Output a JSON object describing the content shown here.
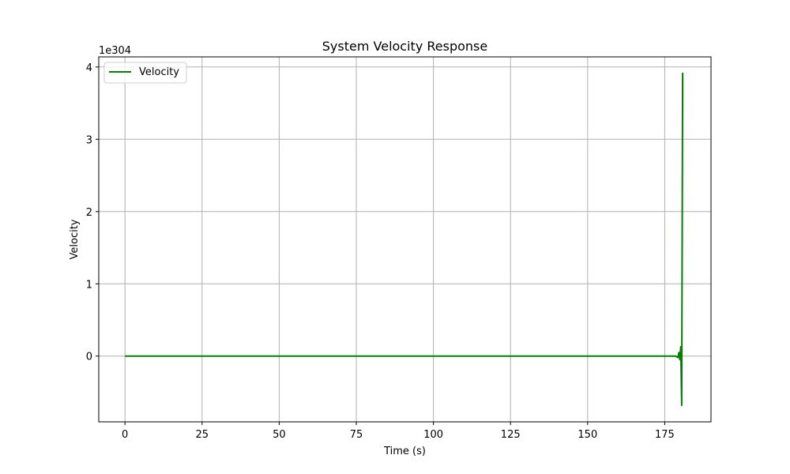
{
  "chart_data": {
    "type": "line",
    "title": "System Velocity Response",
    "xlabel": "Time (s)",
    "ylabel": "Velocity",
    "y_scale_label": "1e304",
    "xlim": [
      -8.5,
      190
    ],
    "ylim": [
      -0.91,
      4.14
    ],
    "x_ticks": [
      0,
      25,
      50,
      75,
      100,
      125,
      150,
      175
    ],
    "x_tick_labels": [
      "0",
      "25",
      "50",
      "75",
      "100",
      "125",
      "150",
      "175"
    ],
    "y_ticks": [
      0,
      1,
      2,
      3,
      4
    ],
    "y_tick_labels": [
      "0",
      "1",
      "2",
      "3",
      "4"
    ],
    "grid": true,
    "legend_position": "upper-left",
    "series": [
      {
        "name": "Velocity",
        "color": "#008000",
        "x": [
          0,
          50,
          100,
          150,
          178.5,
          179.3,
          179.6,
          179.9,
          180.2,
          180.5,
          180.8
        ],
        "y": [
          0,
          0,
          0,
          0,
          0,
          -0.02,
          0.05,
          -0.05,
          0.13,
          -0.68,
          3.92
        ]
      }
    ]
  }
}
